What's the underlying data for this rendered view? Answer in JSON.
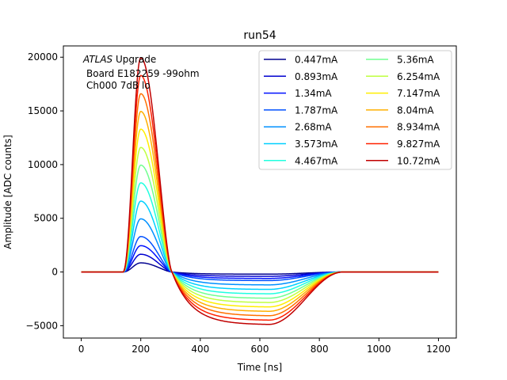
{
  "chart_data": {
    "type": "line",
    "title": "run54",
    "xlabel": "Time [ns]",
    "ylabel": "Amplitude [ADC counts]",
    "xlim": [
      -60,
      1260
    ],
    "ylim": [
      -6150,
      21050
    ],
    "xticks": [
      0,
      200,
      400,
      600,
      800,
      1000,
      1200
    ],
    "yticks": [
      -5000,
      0,
      5000,
      10000,
      15000,
      20000
    ],
    "xtick_labels": [
      "0",
      "200",
      "400",
      "600",
      "800",
      "1000",
      "1200"
    ],
    "ytick_labels": [
      "−5000",
      "0",
      "5000",
      "10000",
      "15000",
      "20000"
    ],
    "grid": false,
    "legend_location": "upper right",
    "annotation": {
      "line1_italic": "ATLAS",
      "line1_rest": " Upgrade",
      "line2": "Board E182259 -99ohm",
      "line3": "Ch000 7dB lo"
    },
    "pulse_shape": {
      "x_start_ns": 0,
      "x_end_ns": 1200,
      "baseline": 0,
      "rise_start_ns": 140,
      "peak_time_ns": 200,
      "zero_crossing_ns": 305,
      "undershoot_plateau_end_ns": 630,
      "recovery_end_ns": 880,
      "undershoot_to_peak_ratio": 0.245
    },
    "series": [
      {
        "name": "0.447mA",
        "color": "#00008f",
        "peak": 850,
        "undershoot": -200
      },
      {
        "name": "0.893mA",
        "color": "#0000cf",
        "peak": 1650,
        "undershoot": -400
      },
      {
        "name": "1.34mA",
        "color": "#0010ff",
        "peak": 2450,
        "undershoot": -600
      },
      {
        "name": "1.787mA",
        "color": "#0050ff",
        "peak": 3300,
        "undershoot": -800
      },
      {
        "name": "2.68mA",
        "color": "#0090ff",
        "peak": 4950,
        "undershoot": -1200
      },
      {
        "name": "3.573mA",
        "color": "#00d0ff",
        "peak": 6600,
        "undershoot": -1620
      },
      {
        "name": "4.467mA",
        "color": "#20ffdf",
        "peak": 8300,
        "undershoot": -2030
      },
      {
        "name": "5.36mA",
        "color": "#70ff8f",
        "peak": 9950,
        "undershoot": -2440
      },
      {
        "name": "6.254mA",
        "color": "#bfff40",
        "peak": 11600,
        "undershoot": -2840
      },
      {
        "name": "7.147mA",
        "color": "#ffee00",
        "peak": 13300,
        "undershoot": -3250
      },
      {
        "name": "8.04mA",
        "color": "#ffb000",
        "peak": 14950,
        "undershoot": -3660
      },
      {
        "name": "8.934mA",
        "color": "#ff7000",
        "peak": 16600,
        "undershoot": -4070
      },
      {
        "name": "9.827mA",
        "color": "#ff2000",
        "peak": 18300,
        "undershoot": -4480
      },
      {
        "name": "10.72mA",
        "color": "#c00000",
        "peak": 19950,
        "undershoot": -4880
      }
    ]
  }
}
